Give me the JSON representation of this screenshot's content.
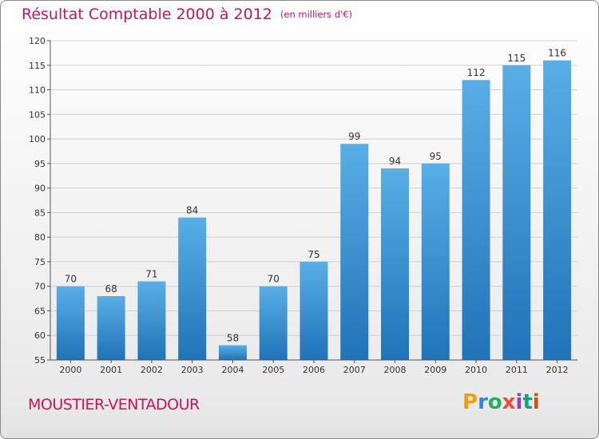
{
  "title": "Résultat Comptable 2000 à 2012",
  "title_unit": "(en milliers d'€)",
  "commune": "MOUSTIER-VENTADOUR",
  "logo_text": "Proxiti",
  "colors": {
    "title": "#c2185b",
    "bar_light": "#5aaee6",
    "bar_dark": "#1f73b7",
    "grid": "#d0d0d0"
  },
  "chart_data": {
    "type": "bar",
    "title": "Résultat Comptable 2000 à 2012",
    "xlabel": "",
    "ylabel": "",
    "categories": [
      "2000",
      "2001",
      "2002",
      "2003",
      "2004",
      "2005",
      "2006",
      "2007",
      "2008",
      "2009",
      "2010",
      "2011",
      "2012"
    ],
    "values": [
      70,
      68,
      71,
      84,
      58,
      70,
      75,
      99,
      94,
      95,
      112,
      115,
      116
    ],
    "ylim": [
      55,
      120
    ],
    "yticks": [
      55,
      60,
      65,
      70,
      75,
      80,
      85,
      90,
      95,
      100,
      105,
      110,
      115,
      120
    ],
    "grid": "horizontal"
  }
}
